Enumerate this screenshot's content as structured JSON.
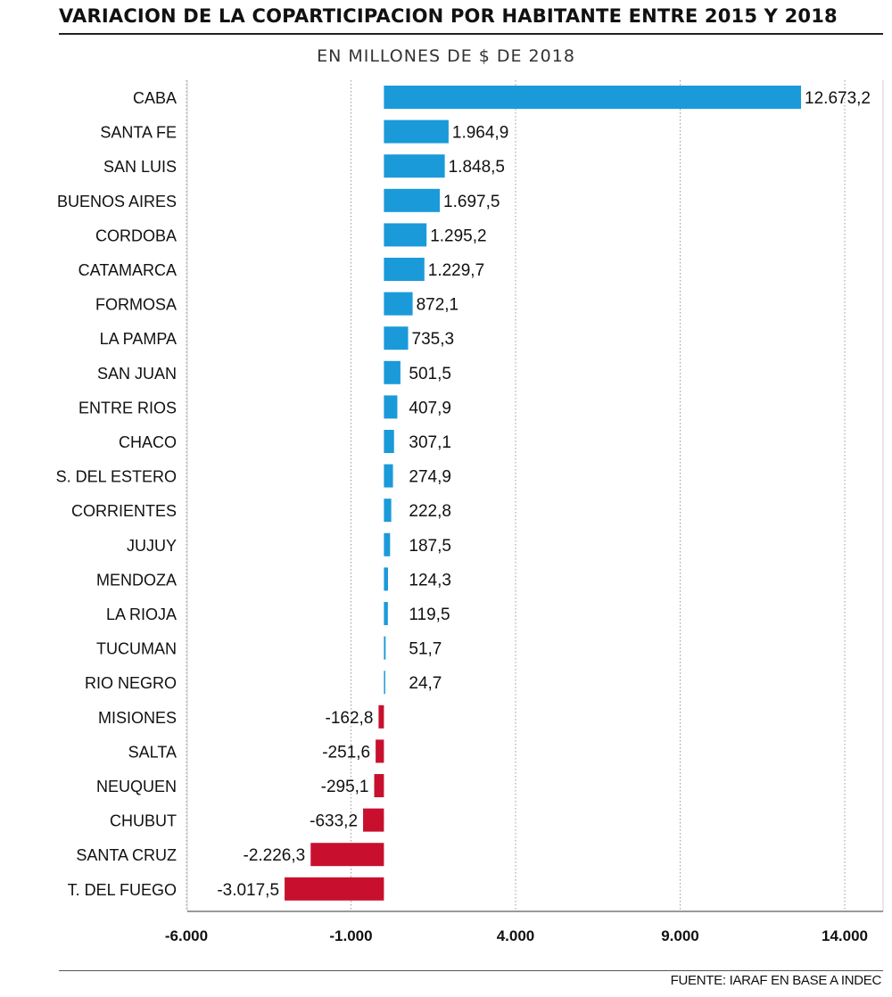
{
  "chart_data": {
    "type": "bar",
    "orientation": "horizontal",
    "title": "VARIACION DE LA COPARTICIPACION POR HABITANTE ENTRE 2015 Y 2018",
    "subtitle": "EN MILLONES DE $ DE 2018",
    "categories": [
      "CABA",
      "SANTA FE",
      "SAN LUIS",
      "BUENOS AIRES",
      "CORDOBA",
      "CATAMARCA",
      "FORMOSA",
      "LA PAMPA",
      "SAN JUAN",
      "ENTRE RIOS",
      "CHACO",
      "S. DEL ESTERO",
      "CORRIENTES",
      "JUJUY",
      "MENDOZA",
      "LA RIOJA",
      "TUCUMAN",
      "RIO NEGRO",
      "MISIONES",
      "SALTA",
      "NEUQUEN",
      "CHUBUT",
      "SANTA CRUZ",
      "T. DEL FUEGO"
    ],
    "values": [
      12673.2,
      1964.9,
      1848.5,
      1697.5,
      1295.2,
      1229.7,
      872.1,
      735.3,
      501.5,
      407.9,
      307.1,
      274.9,
      222.8,
      187.5,
      124.3,
      119.5,
      51.7,
      24.7,
      -162.8,
      -251.6,
      -295.1,
      -633.2,
      -2226.3,
      -3017.5
    ],
    "value_labels": [
      "12.673,2",
      "1.964,9",
      "1.848,5",
      "1.697,5",
      "1.295,2",
      "1.229,7",
      "872,1",
      "735,3",
      "501,5",
      "407,9",
      "307,1",
      "274,9",
      "222,8",
      "187,5",
      "124,3",
      "119,5",
      "51,7",
      "24,7",
      "-162,8",
      "-251,6",
      "-295,1",
      "-633,2",
      "-2.226,3",
      "-3.017,5"
    ],
    "x_ticks": [
      -6000,
      -1000,
      4000,
      9000,
      14000
    ],
    "x_tick_labels": [
      "-6.000",
      "-1.000",
      "4.000",
      "9.000",
      "14.000"
    ],
    "xlim": [
      -6000,
      15000
    ],
    "grid": true,
    "colors": {
      "positive": "#1a9ad9",
      "negative": "#c8102e"
    }
  },
  "source": "FUENTE: IARAF EN BASE A INDEC"
}
